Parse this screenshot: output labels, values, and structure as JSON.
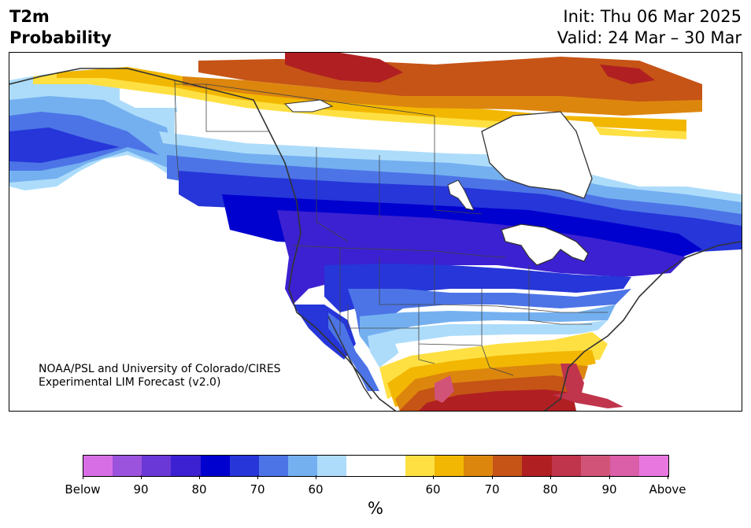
{
  "title": {
    "left": "T2m\nProbability",
    "right": "Init: Thu 06 Mar 2025\nValid: 24 Mar – 30 Mar"
  },
  "credit": "NOAA/PSL and University of Colorado/CIRES\nExperimental LIM Forecast (v2.0)",
  "colorbar": {
    "colors": [
      "#d86ee6",
      "#9b52dd",
      "#6a38d6",
      "#3b21d1",
      "#0000cf",
      "#2636d9",
      "#4c74e6",
      "#74b0f0",
      "#addcfb",
      "#ffffff",
      "#ffffff",
      "#ffe043",
      "#f2b702",
      "#dc860e",
      "#c55416",
      "#b01f22",
      "#c0344c",
      "#d15478",
      "#db5ea8",
      "#e878e0"
    ],
    "tick_labels": [
      "Below",
      "90",
      "80",
      "70",
      "60",
      "60",
      "70",
      "80",
      "90",
      "Above"
    ],
    "unit": "%"
  },
  "map_colors": {
    "land_bg": "#ffffff",
    "cold_strong": "#0000cf",
    "cold_indigo": "#3b21d1",
    "cold_mid": "#2636d9",
    "cold_light": "#4c74e6",
    "cold_pale": "#74b0f0",
    "cold_faint": "#addcfb",
    "warm_faint": "#ffe043",
    "warm_pale": "#f2b702",
    "warm_mid": "#dc860e",
    "warm_strong": "#c55416",
    "hot": "#b01f22",
    "hot_pink": "#c0344c",
    "hot_magenta": "#d15478",
    "coast": "#333333",
    "water": "#ffffff"
  }
}
